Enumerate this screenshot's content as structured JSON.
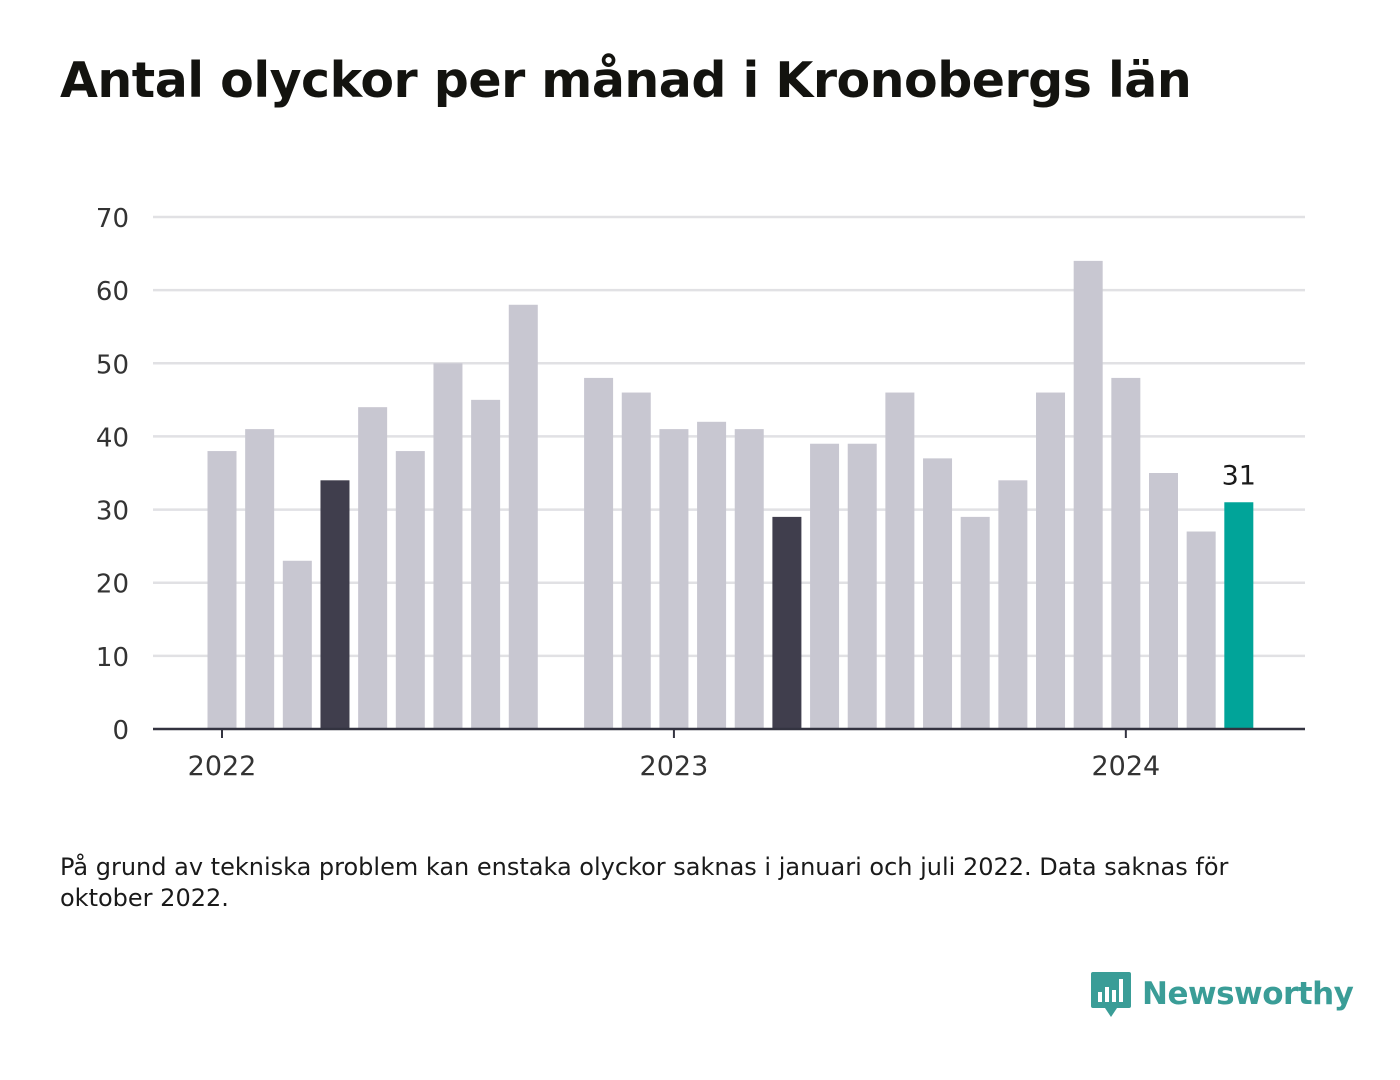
{
  "title": "Antal olyckor per månad i Kronobergs län",
  "note": "På grund av tekniska problem kan enstaka olyckor saknas i januari och juli 2022. Data saknas för oktober 2022.",
  "brand": {
    "name": "Newsworthy",
    "icon": "newsworthy-logo-icon",
    "color": "#3a9d97"
  },
  "chart_data": {
    "type": "bar",
    "categories": [
      "2022-01",
      "2022-02",
      "2022-03",
      "2022-04",
      "2022-05",
      "2022-06",
      "2022-07",
      "2022-08",
      "2022-09",
      "2022-10",
      "2022-11",
      "2022-12",
      "2023-01",
      "2023-02",
      "2023-03",
      "2023-04",
      "2023-05",
      "2023-06",
      "2023-07",
      "2023-08",
      "2023-09",
      "2023-10",
      "2023-11",
      "2023-12",
      "2024-01",
      "2024-02",
      "2024-03",
      "2024-04"
    ],
    "values": [
      38,
      41,
      23,
      34,
      44,
      38,
      50,
      45,
      58,
      null,
      48,
      46,
      41,
      42,
      41,
      29,
      39,
      39,
      46,
      37,
      29,
      34,
      46,
      64,
      48,
      35,
      27,
      31
    ],
    "highlight": {
      "2022-04": "dark",
      "2023-04": "dark",
      "2024-04": "accent"
    },
    "colors": {
      "default": "#c8c7d1",
      "dark": "#403e4d",
      "accent": "#01a499"
    },
    "data_label": {
      "category": "2024-04",
      "text": "31"
    },
    "ylim": [
      0,
      70
    ],
    "yticks": [
      0,
      10,
      20,
      30,
      40,
      50,
      60,
      70
    ],
    "xticks": [
      {
        "category": "2022-01",
        "label": "2022"
      },
      {
        "category": "2023-01",
        "label": "2023"
      },
      {
        "category": "2024-01",
        "label": "2024"
      }
    ],
    "xlabel": "",
    "ylabel": "",
    "grid": true
  }
}
